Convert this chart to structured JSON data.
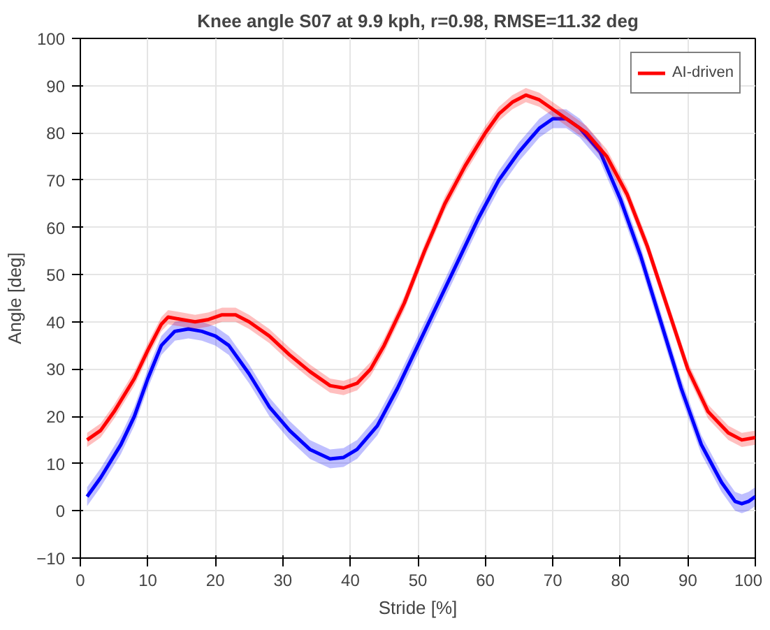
{
  "chart_data": {
    "type": "line",
    "title": "Knee angle S07 at 9.9 kph, r=0.98, RMSE=11.32 deg",
    "xlabel": "Stride [%]",
    "ylabel": "Angle [deg]",
    "xlim": [
      0,
      100
    ],
    "xticks": [
      0,
      10,
      20,
      30,
      40,
      50,
      60,
      70,
      80,
      90,
      100
    ],
    "ylim": [
      -10,
      100
    ],
    "yticks": [
      -10,
      0,
      10,
      20,
      30,
      40,
      50,
      60,
      70,
      80,
      90,
      100
    ],
    "grid": true,
    "legend": "top right",
    "series": [
      {
        "color": "#0000ff",
        "x": [
          1,
          3,
          6,
          8,
          10,
          12,
          14,
          16,
          18,
          20,
          22,
          25,
          28,
          31,
          34,
          37,
          39,
          41,
          44,
          47,
          50,
          53,
          56,
          59,
          62,
          65,
          68,
          70,
          72,
          74,
          77,
          80,
          83,
          86,
          89,
          92,
          95,
          97,
          98,
          99,
          100
        ],
        "values": [
          3,
          7,
          14,
          20,
          28,
          35,
          38,
          38.5,
          38,
          37,
          35,
          29,
          22,
          17,
          13,
          11,
          11.3,
          13,
          18,
          26,
          35,
          44,
          53,
          62,
          70,
          76,
          81,
          83,
          83,
          81,
          76,
          66,
          54,
          40,
          26,
          14,
          6,
          2,
          1.5,
          2,
          3
        ],
        "lower": [
          1,
          5,
          12,
          18,
          26,
          33,
          36,
          36.5,
          36,
          35,
          33,
          27,
          20,
          15,
          11,
          9,
          9.3,
          11,
          16,
          24,
          33,
          42,
          51,
          60,
          68,
          74,
          79,
          81,
          81,
          79,
          74,
          64,
          52,
          38,
          24,
          12,
          4,
          0,
          -0.5,
          0,
          1
        ],
        "upper": [
          5,
          9,
          16,
          22,
          30,
          37,
          40,
          40.5,
          40,
          39,
          37,
          31,
          24,
          19,
          15,
          13,
          13.3,
          15,
          20,
          28,
          37,
          46,
          55,
          64,
          72,
          78,
          83,
          85,
          85,
          83,
          78,
          68,
          56,
          42,
          28,
          16,
          8,
          4,
          3.5,
          4,
          5
        ]
      },
      {
        "name": "AI-driven",
        "color": "#ff0000",
        "x": [
          1,
          3,
          5,
          8,
          10,
          12,
          13,
          15,
          17,
          19,
          21,
          23,
          25,
          28,
          31,
          34,
          37,
          39,
          41,
          43,
          45,
          48,
          51,
          54,
          57,
          60,
          62,
          64,
          66,
          68,
          70,
          72,
          75,
          78,
          81,
          84,
          87,
          90,
          93,
          96,
          98,
          100
        ],
        "values": [
          15,
          17,
          21,
          28,
          34,
          39.5,
          41,
          40.5,
          40,
          40.5,
          41.5,
          41.5,
          40,
          37,
          33,
          29.5,
          26.5,
          26,
          27,
          30,
          35,
          44,
          55,
          65,
          73,
          80,
          84,
          86.5,
          88,
          87,
          85,
          83,
          80,
          75,
          67,
          56,
          43,
          30,
          21,
          16.5,
          15,
          15.5
        ],
        "lower": [
          13.5,
          15.5,
          19.5,
          26.5,
          32.5,
          38,
          39.5,
          39,
          38.5,
          39,
          40,
          40,
          38.5,
          35.5,
          31.5,
          28,
          25,
          24.5,
          25.5,
          28.5,
          33.5,
          42.5,
          53.5,
          63.5,
          71.5,
          78.5,
          82.5,
          85,
          86.5,
          85.5,
          83.5,
          81.5,
          78.5,
          73.5,
          65.5,
          54.5,
          41.5,
          28.5,
          19.5,
          15,
          13.5,
          14
        ],
        "upper": [
          16.5,
          18.5,
          22.5,
          29.5,
          35.5,
          41,
          42.5,
          42,
          41.5,
          42,
          43,
          43,
          41.5,
          38.5,
          34.5,
          31,
          28,
          27.5,
          28.5,
          31.5,
          36.5,
          45.5,
          56.5,
          66.5,
          74.5,
          81.5,
          85.5,
          88,
          89.5,
          88.5,
          86.5,
          84.5,
          81.5,
          76.5,
          68.5,
          57.5,
          44.5,
          31.5,
          22.5,
          18,
          16.5,
          17
        ]
      }
    ]
  }
}
